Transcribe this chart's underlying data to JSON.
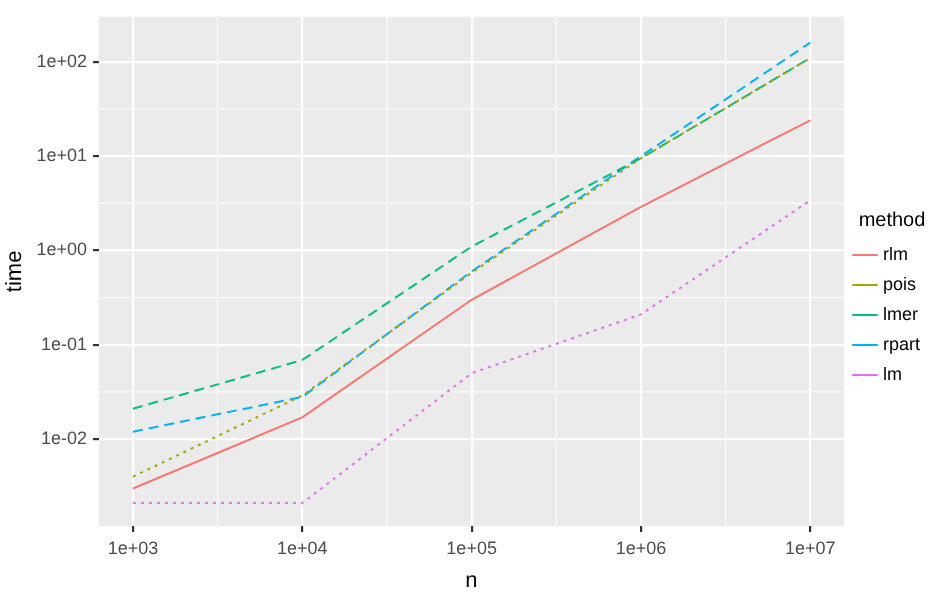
{
  "chart_data": {
    "type": "line",
    "xlabel": "n",
    "ylabel": "time",
    "legend_title": "method",
    "legend": "right",
    "log": "xy",
    "grid": true,
    "x": [
      1000,
      10000,
      100000,
      1000000,
      10000000
    ],
    "xlim": [
      630,
      15800000
    ],
    "ylim": [
      0.0012,
      300
    ],
    "xticks": [
      {
        "value": 1000,
        "label": "1e+03"
      },
      {
        "value": 10000,
        "label": "1e+04"
      },
      {
        "value": 100000,
        "label": "1e+05"
      },
      {
        "value": 1000000,
        "label": "1e+06"
      },
      {
        "value": 10000000,
        "label": "1e+07"
      }
    ],
    "yticks": [
      {
        "value": 0.01,
        "label": "1e-02"
      },
      {
        "value": 0.1,
        "label": "1e-01"
      },
      {
        "value": 1,
        "label": "1e+00"
      },
      {
        "value": 10,
        "label": "1e+01"
      },
      {
        "value": 100,
        "label": "1e+02"
      }
    ],
    "series": [
      {
        "name": "rlm",
        "color": "#f8766d",
        "line_style": "solid",
        "values": [
          0.003,
          0.017,
          0.3,
          2.9,
          24
        ]
      },
      {
        "name": "pois",
        "color": "#a3a500",
        "line_style": "dotted",
        "values": [
          0.004,
          0.029,
          0.58,
          9.5,
          110
        ]
      },
      {
        "name": "lmer",
        "color": "#00bf7d",
        "line_style": "dashed",
        "values": [
          0.021,
          0.069,
          1.1,
          9.5,
          110
        ]
      },
      {
        "name": "rpart",
        "color": "#00b0f6",
        "line_style": "dashed",
        "values": [
          0.012,
          0.028,
          0.6,
          10,
          160
        ]
      },
      {
        "name": "lm",
        "color": "#e76bf3",
        "line_style": "dotted",
        "values": [
          0.0021,
          0.0021,
          0.05,
          0.21,
          3.4
        ]
      }
    ]
  }
}
